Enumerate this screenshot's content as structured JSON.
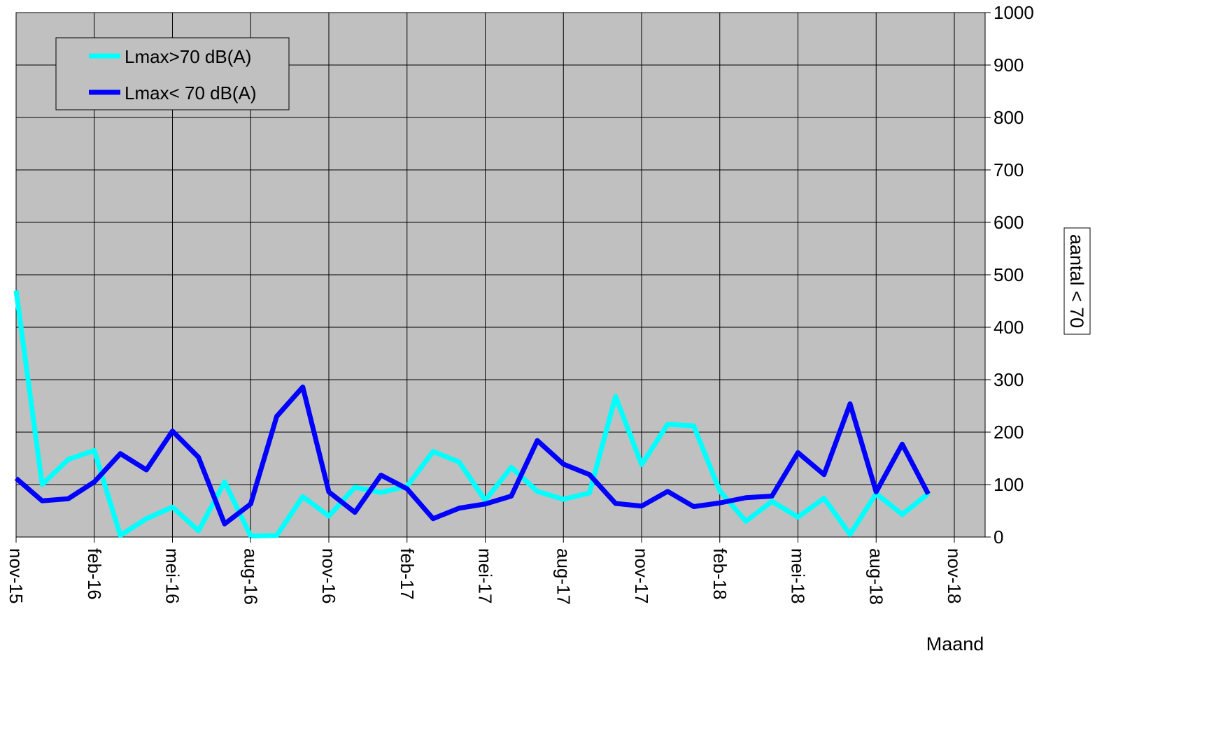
{
  "chart_data": {
    "type": "line",
    "title": "",
    "xlabel": "Maand",
    "ylabel": "aantal < 70",
    "ylim": [
      0,
      1000
    ],
    "yticks": [
      0,
      100,
      200,
      300,
      400,
      500,
      600,
      700,
      800,
      900,
      1000
    ],
    "y_axis_side": "right",
    "grid": true,
    "plot_background": "#c0c0c0",
    "legend_position": "top-left",
    "x_tick_labels": [
      "nov-15",
      "feb-16",
      "mei-16",
      "aug-16",
      "nov-16",
      "feb-17",
      "mei-17",
      "aug-17",
      "nov-17",
      "feb-18",
      "mei-18",
      "aug-18",
      "nov-18"
    ],
    "x": [
      "nov-15",
      "dec-15",
      "jan-16",
      "feb-16",
      "mrt-16",
      "apr-16",
      "mei-16",
      "jun-16",
      "jul-16",
      "aug-16",
      "sep-16",
      "okt-16",
      "nov-16",
      "dec-16",
      "jan-17",
      "feb-17",
      "mrt-17",
      "apr-17",
      "mei-17",
      "jun-17",
      "jul-17",
      "aug-17",
      "sep-17",
      "okt-17",
      "nov-17",
      "dec-17",
      "jan-18",
      "feb-18",
      "mrt-18",
      "apr-18",
      "mei-18",
      "jun-18",
      "jul-18",
      "aug-18",
      "sep-18",
      "okt-18"
    ],
    "series": [
      {
        "name": "Lmax>70 dB(A)",
        "color": "#00ffff",
        "values": [
          470,
          100,
          148,
          165,
          3,
          35,
          57,
          12,
          105,
          2,
          3,
          77,
          40,
          95,
          85,
          97,
          163,
          143,
          70,
          133,
          87,
          72,
          84,
          268,
          138,
          215,
          212,
          88,
          30,
          68,
          38,
          74,
          5,
          83,
          43,
          83
        ]
      },
      {
        "name": "Lmax< 70 dB(A)",
        "color": "#0000ff",
        "values": [
          112,
          69,
          73,
          105,
          159,
          128,
          202,
          152,
          25,
          63,
          230,
          286,
          86,
          47,
          118,
          92,
          35,
          55,
          63,
          78,
          184,
          139,
          119,
          64,
          59,
          87,
          58,
          65,
          75,
          78,
          161,
          119,
          254,
          86,
          177,
          82
        ]
      }
    ]
  }
}
